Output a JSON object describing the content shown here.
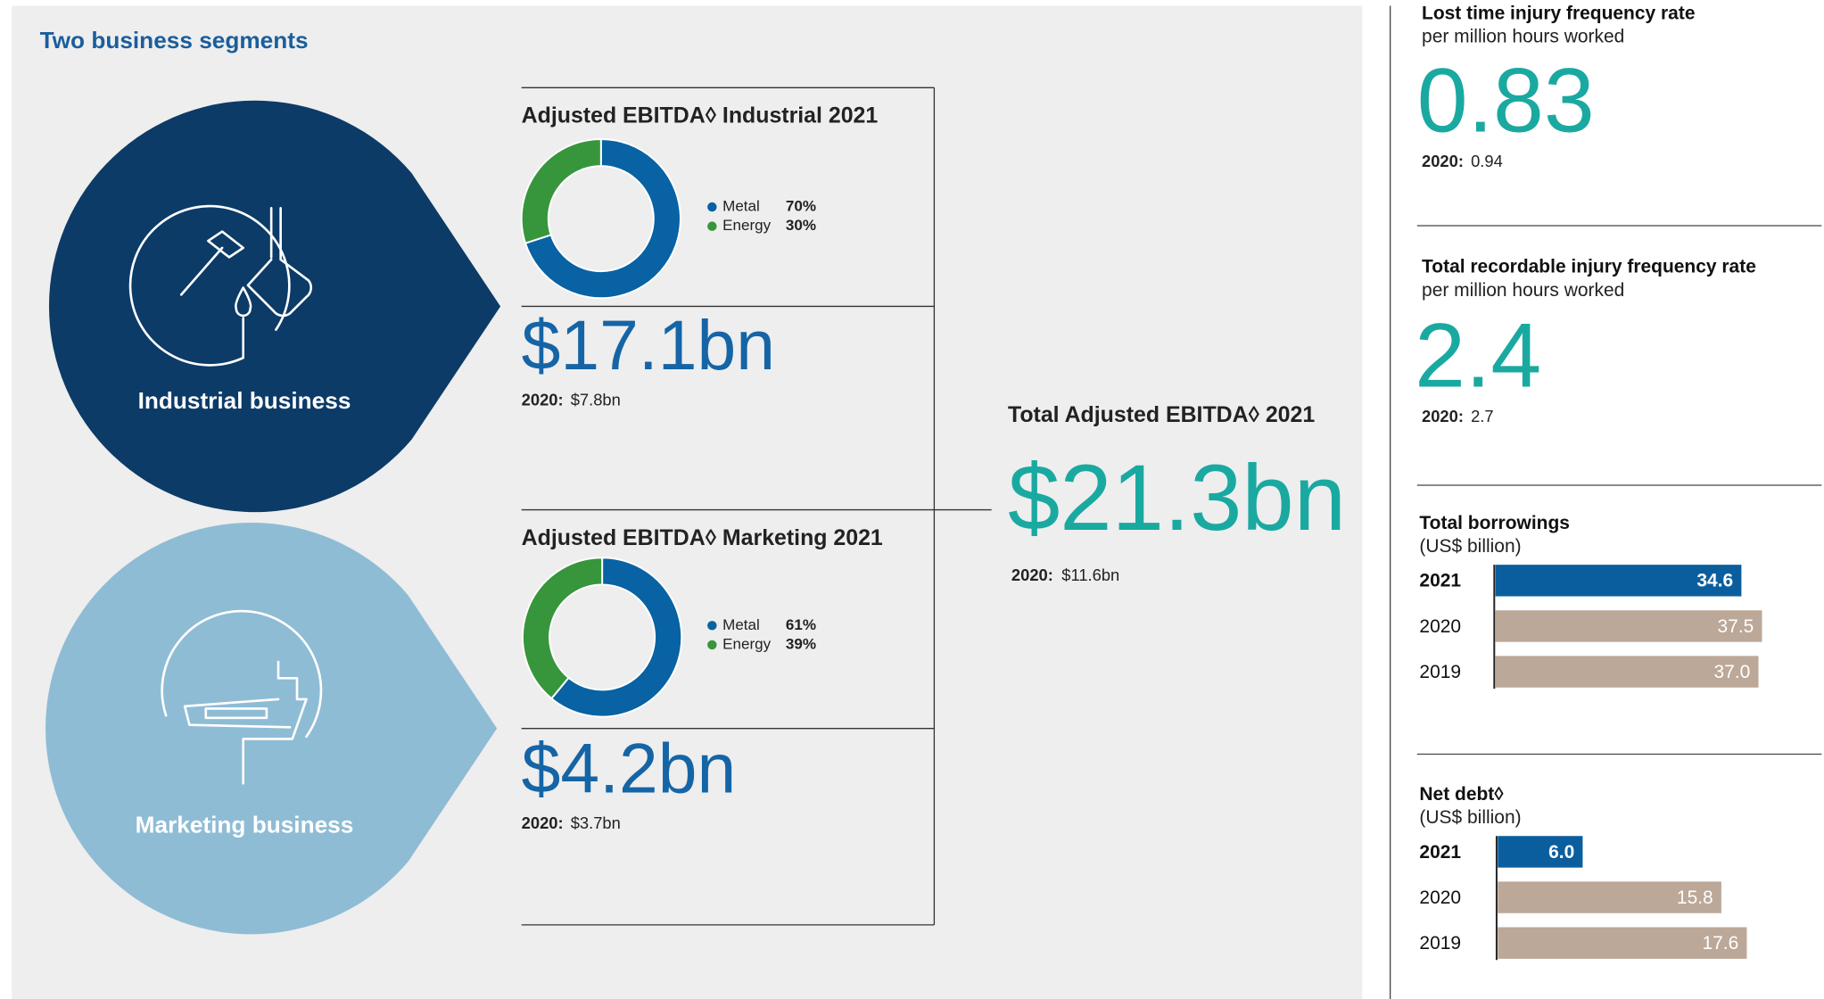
{
  "heading": "Two business segments",
  "segments": [
    {
      "label": "Industrial business",
      "value": "$17.1bn",
      "prior_label": "2020:",
      "prior_value": "$7.8bn"
    },
    {
      "label": "Marketing business",
      "value": "$4.2bn",
      "prior_label": "2020:",
      "prior_value": "$3.7bn"
    }
  ],
  "total": {
    "title": "Total Adjusted EBITDA◊ 2021",
    "value": "$21.3bn",
    "prior_label": "2020:",
    "prior_value": "$11.6bn"
  },
  "kpis": [
    {
      "title": "Lost time injury frequency rate",
      "subtitle": "per million hours worked",
      "value": "0.83",
      "prior_label": "2020:",
      "prior_value": "0.94"
    },
    {
      "title": "Total recordable injury frequency rate",
      "subtitle": "per million hours worked",
      "value": "2.4",
      "prior_label": "2020:",
      "prior_value": "2.7"
    }
  ],
  "chart_data": [
    {
      "type": "pie",
      "title": "Adjusted EBITDA◊ Industrial 2021",
      "categories": [
        "Metal",
        "Energy"
      ],
      "values": [
        70,
        30
      ],
      "value_labels": [
        "70%",
        "30%"
      ],
      "colors": [
        "#0862a3",
        "#37963b"
      ]
    },
    {
      "type": "pie",
      "title": "Adjusted EBITDA◊ Marketing 2021",
      "categories": [
        "Metal",
        "Energy"
      ],
      "values": [
        61,
        39
      ],
      "value_labels": [
        "61%",
        "39%"
      ],
      "colors": [
        "#0862a3",
        "#37963b"
      ]
    },
    {
      "type": "hbar",
      "title": "Total borrowings",
      "subtitle": "(US$ billion)",
      "categories": [
        "2021",
        "2020",
        "2019"
      ],
      "values": [
        34.6,
        37.5,
        37.0
      ],
      "value_labels": [
        "34.6",
        "37.5",
        "37.0"
      ],
      "colors": [
        "#0a5e9e",
        "#bca898",
        "#bca898"
      ]
    },
    {
      "type": "hbar",
      "title": "Net debt◊",
      "subtitle": "(US$ billion)",
      "categories": [
        "2021",
        "2020",
        "2019"
      ],
      "values": [
        6.0,
        15.8,
        17.6
      ],
      "value_labels": [
        "6.0",
        "15.8",
        "17.6"
      ],
      "colors": [
        "#0a5e9e",
        "#bca898",
        "#bca898"
      ]
    }
  ]
}
